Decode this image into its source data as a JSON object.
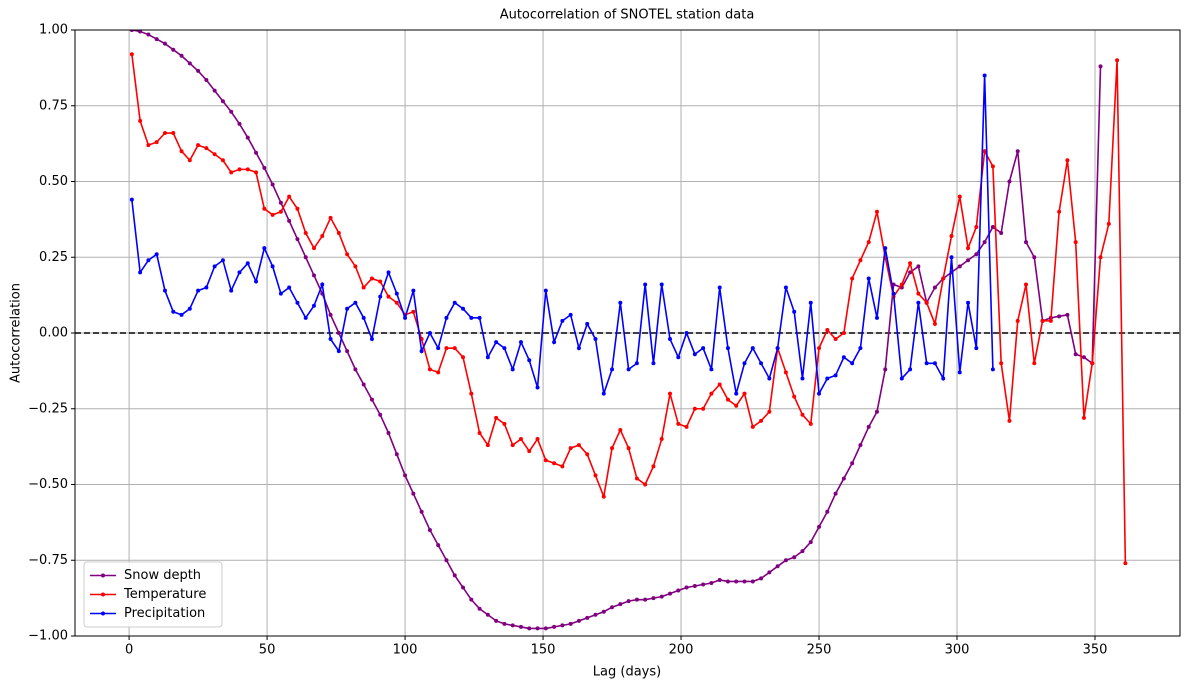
{
  "chart_data": {
    "type": "line",
    "title": "Autocorrelation of SNOTEL station data",
    "x_label": "Lag (days)",
    "y_label": "Autocorrelation",
    "x": [
      1,
      4,
      7,
      10,
      13,
      16,
      19,
      22,
      25,
      28,
      31,
      34,
      37,
      40,
      43,
      46,
      49,
      52,
      55,
      58,
      61,
      64,
      67,
      70,
      73,
      76,
      79,
      82,
      85,
      88,
      91,
      94,
      97,
      100,
      103,
      106,
      109,
      112,
      115,
      118,
      121,
      124,
      127,
      130,
      133,
      136,
      139,
      142,
      145,
      148,
      151,
      154,
      157,
      160,
      163,
      166,
      169,
      172,
      175,
      178,
      181,
      184,
      187,
      190,
      193,
      196,
      199,
      202,
      205,
      208,
      211,
      214,
      217,
      220,
      223,
      226,
      229,
      232,
      235,
      238,
      241,
      244,
      247,
      250,
      253,
      256,
      259,
      262,
      265,
      268,
      271,
      274,
      277,
      280,
      283,
      286,
      289,
      292,
      295,
      298,
      301,
      304,
      307,
      310,
      313,
      316,
      319,
      322,
      325,
      328,
      331,
      334,
      337,
      340,
      343,
      346,
      349,
      352,
      355,
      358,
      361
    ],
    "series": [
      {
        "name": "Snow depth",
        "color": "#800080",
        "values": [
          1.0,
          0.995,
          0.985,
          0.97,
          0.955,
          0.935,
          0.915,
          0.89,
          0.865,
          0.835,
          0.8,
          0.765,
          0.73,
          0.69,
          0.645,
          0.595,
          0.545,
          0.49,
          0.43,
          0.37,
          0.31,
          0.25,
          0.19,
          0.13,
          0.06,
          0.0,
          -0.06,
          -0.12,
          -0.17,
          -0.22,
          -0.27,
          -0.33,
          -0.4,
          -0.47,
          -0.53,
          -0.59,
          -0.65,
          -0.7,
          -0.75,
          -0.8,
          -0.84,
          -0.88,
          -0.91,
          -0.93,
          -0.95,
          -0.96,
          -0.965,
          -0.97,
          -0.975,
          -0.975,
          -0.975,
          -0.97,
          -0.965,
          -0.96,
          -0.95,
          -0.94,
          -0.93,
          -0.92,
          -0.905,
          -0.895,
          -0.885,
          -0.88,
          -0.88,
          -0.875,
          -0.87,
          -0.86,
          -0.85,
          -0.84,
          -0.835,
          -0.83,
          -0.825,
          -0.815,
          -0.82,
          -0.82,
          -0.82,
          -0.82,
          -0.81,
          -0.79,
          -0.77,
          -0.75,
          -0.74,
          -0.72,
          -0.69,
          -0.64,
          -0.59,
          -0.53,
          -0.48,
          -0.43,
          -0.37,
          -0.31,
          -0.26,
          -0.12,
          0.16,
          0.15,
          0.2,
          0.22,
          0.1,
          0.15,
          0.18,
          0.2,
          0.22,
          0.24,
          0.26,
          0.3,
          0.35,
          0.33,
          0.5,
          0.6,
          0.3,
          0.25,
          0.04,
          0.05,
          0.055,
          0.06,
          -0.07,
          -0.08,
          -0.1,
          0.88,
          null,
          null,
          null
        ]
      },
      {
        "name": "Temperature",
        "color": "#ff0000",
        "values": [
          0.92,
          0.7,
          0.62,
          0.63,
          0.66,
          0.66,
          0.6,
          0.57,
          0.62,
          0.61,
          0.59,
          0.57,
          0.53,
          0.54,
          0.54,
          0.53,
          0.41,
          0.39,
          0.4,
          0.45,
          0.41,
          0.33,
          0.28,
          0.32,
          0.38,
          0.33,
          0.26,
          0.22,
          0.15,
          0.18,
          0.17,
          0.12,
          0.1,
          0.06,
          0.07,
          -0.02,
          -0.12,
          -0.13,
          -0.05,
          -0.05,
          -0.08,
          -0.2,
          -0.33,
          -0.37,
          -0.28,
          -0.3,
          -0.37,
          -0.35,
          -0.39,
          -0.35,
          -0.42,
          -0.43,
          -0.44,
          -0.38,
          -0.37,
          -0.4,
          -0.47,
          -0.54,
          -0.38,
          -0.32,
          -0.38,
          -0.48,
          -0.5,
          -0.44,
          -0.35,
          -0.2,
          -0.3,
          -0.31,
          -0.25,
          -0.25,
          -0.2,
          -0.17,
          -0.22,
          -0.24,
          -0.2,
          -0.31,
          -0.29,
          -0.26,
          -0.05,
          -0.13,
          -0.21,
          -0.27,
          -0.3,
          -0.05,
          0.01,
          -0.02,
          0.0,
          0.18,
          0.24,
          0.3,
          0.4,
          0.25,
          0.12,
          0.16,
          0.23,
          0.13,
          0.1,
          0.03,
          0.18,
          0.32,
          0.45,
          0.28,
          0.35,
          0.6,
          0.55,
          -0.1,
          -0.29,
          0.04,
          0.16,
          -0.1,
          0.04,
          0.04,
          0.4,
          0.57,
          0.3,
          -0.28,
          -0.1,
          0.25,
          0.36,
          0.9,
          -0.76
        ]
      },
      {
        "name": "Precipitation",
        "color": "#0000ff",
        "values": [
          0.44,
          0.2,
          0.24,
          0.26,
          0.14,
          0.07,
          0.06,
          0.08,
          0.14,
          0.15,
          0.22,
          0.24,
          0.14,
          0.2,
          0.23,
          0.17,
          0.28,
          0.22,
          0.13,
          0.15,
          0.1,
          0.05,
          0.09,
          0.16,
          -0.02,
          -0.06,
          0.08,
          0.1,
          0.05,
          -0.02,
          0.12,
          0.2,
          0.13,
          0.05,
          0.14,
          -0.06,
          0.0,
          -0.05,
          0.05,
          0.1,
          0.08,
          0.05,
          0.05,
          -0.08,
          -0.03,
          -0.05,
          -0.12,
          -0.03,
          -0.09,
          -0.18,
          0.14,
          -0.03,
          0.04,
          0.06,
          -0.05,
          0.03,
          -0.02,
          -0.2,
          -0.12,
          0.1,
          -0.12,
          -0.1,
          0.16,
          -0.1,
          0.16,
          -0.02,
          -0.08,
          0.0,
          -0.07,
          -0.05,
          -0.12,
          0.15,
          -0.05,
          -0.2,
          -0.1,
          -0.05,
          -0.1,
          -0.15,
          -0.05,
          0.15,
          0.07,
          -0.15,
          0.1,
          -0.2,
          -0.15,
          -0.14,
          -0.08,
          -0.1,
          -0.05,
          0.18,
          0.05,
          0.28,
          0.13,
          -0.15,
          -0.12,
          0.1,
          -0.1,
          -0.1,
          -0.15,
          0.25,
          -0.13,
          0.1,
          -0.05,
          0.85,
          -0.12,
          null,
          null,
          null,
          null,
          null,
          null,
          null,
          null,
          null,
          null,
          null,
          null,
          null,
          null,
          null,
          null
        ]
      }
    ],
    "xlim": [
      -19.6,
      380.8
    ],
    "ylim": [
      -1.0,
      1.0
    ],
    "xticks": [
      0,
      50,
      100,
      150,
      200,
      250,
      300,
      350
    ],
    "yticks": [
      {
        "value": -1.0,
        "label": "−1.00"
      },
      {
        "value": -0.75,
        "label": "−0.75"
      },
      {
        "value": -0.5,
        "label": "−0.50"
      },
      {
        "value": -0.25,
        "label": "−0.25"
      },
      {
        "value": 0,
        "label": "0.00"
      },
      {
        "value": 0.25,
        "label": "0.25"
      },
      {
        "value": 0.5,
        "label": "0.50"
      },
      {
        "value": 0.75,
        "label": "0.75"
      },
      {
        "value": 1.0,
        "label": "1.00"
      }
    ],
    "grid": true,
    "legend": "lower left",
    "reference_lines": [
      {
        "y": 0,
        "color": "#000000"
      }
    ]
  }
}
